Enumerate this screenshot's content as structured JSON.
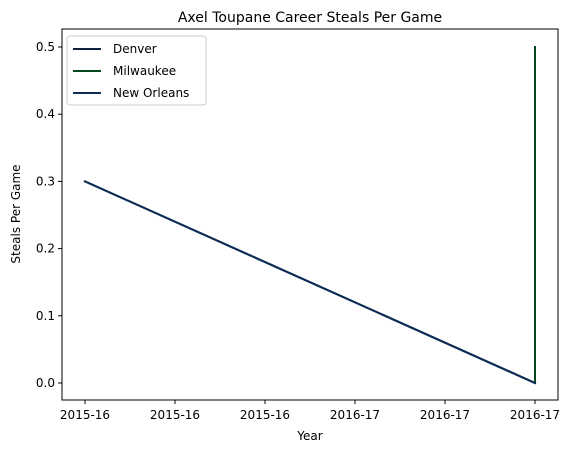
{
  "chart_data": {
    "type": "line",
    "title": "Axel Toupane Career Steals Per Game",
    "xlabel": "Year",
    "ylabel": "Steals Per Game",
    "x_ticks": [
      "2015-16",
      "2015-16",
      "2015-16",
      "2016-17",
      "2016-17",
      "2016-17"
    ],
    "x_range": [
      0,
      1
    ],
    "ylim": [
      0,
      0.5
    ],
    "y_ticks": [
      0.0,
      0.1,
      0.2,
      0.3,
      0.4,
      0.5
    ],
    "y_tick_labels": [
      "0.0",
      "0.1",
      "0.2",
      "0.3",
      "0.4",
      "0.5"
    ],
    "grid": false,
    "legend_position": "top-left",
    "series": [
      {
        "name": "Denver",
        "color": "#0e2240",
        "x": [
          0,
          1
        ],
        "y": [
          0.3,
          0.0
        ]
      },
      {
        "name": "Milwaukee",
        "color": "#00471b",
        "x": [
          1,
          1
        ],
        "y": [
          0.0,
          0.5
        ]
      },
      {
        "name": "New Orleans",
        "color": "#0c2c56",
        "x": [
          0,
          1
        ],
        "y": [
          0.3,
          0.0
        ]
      }
    ]
  }
}
